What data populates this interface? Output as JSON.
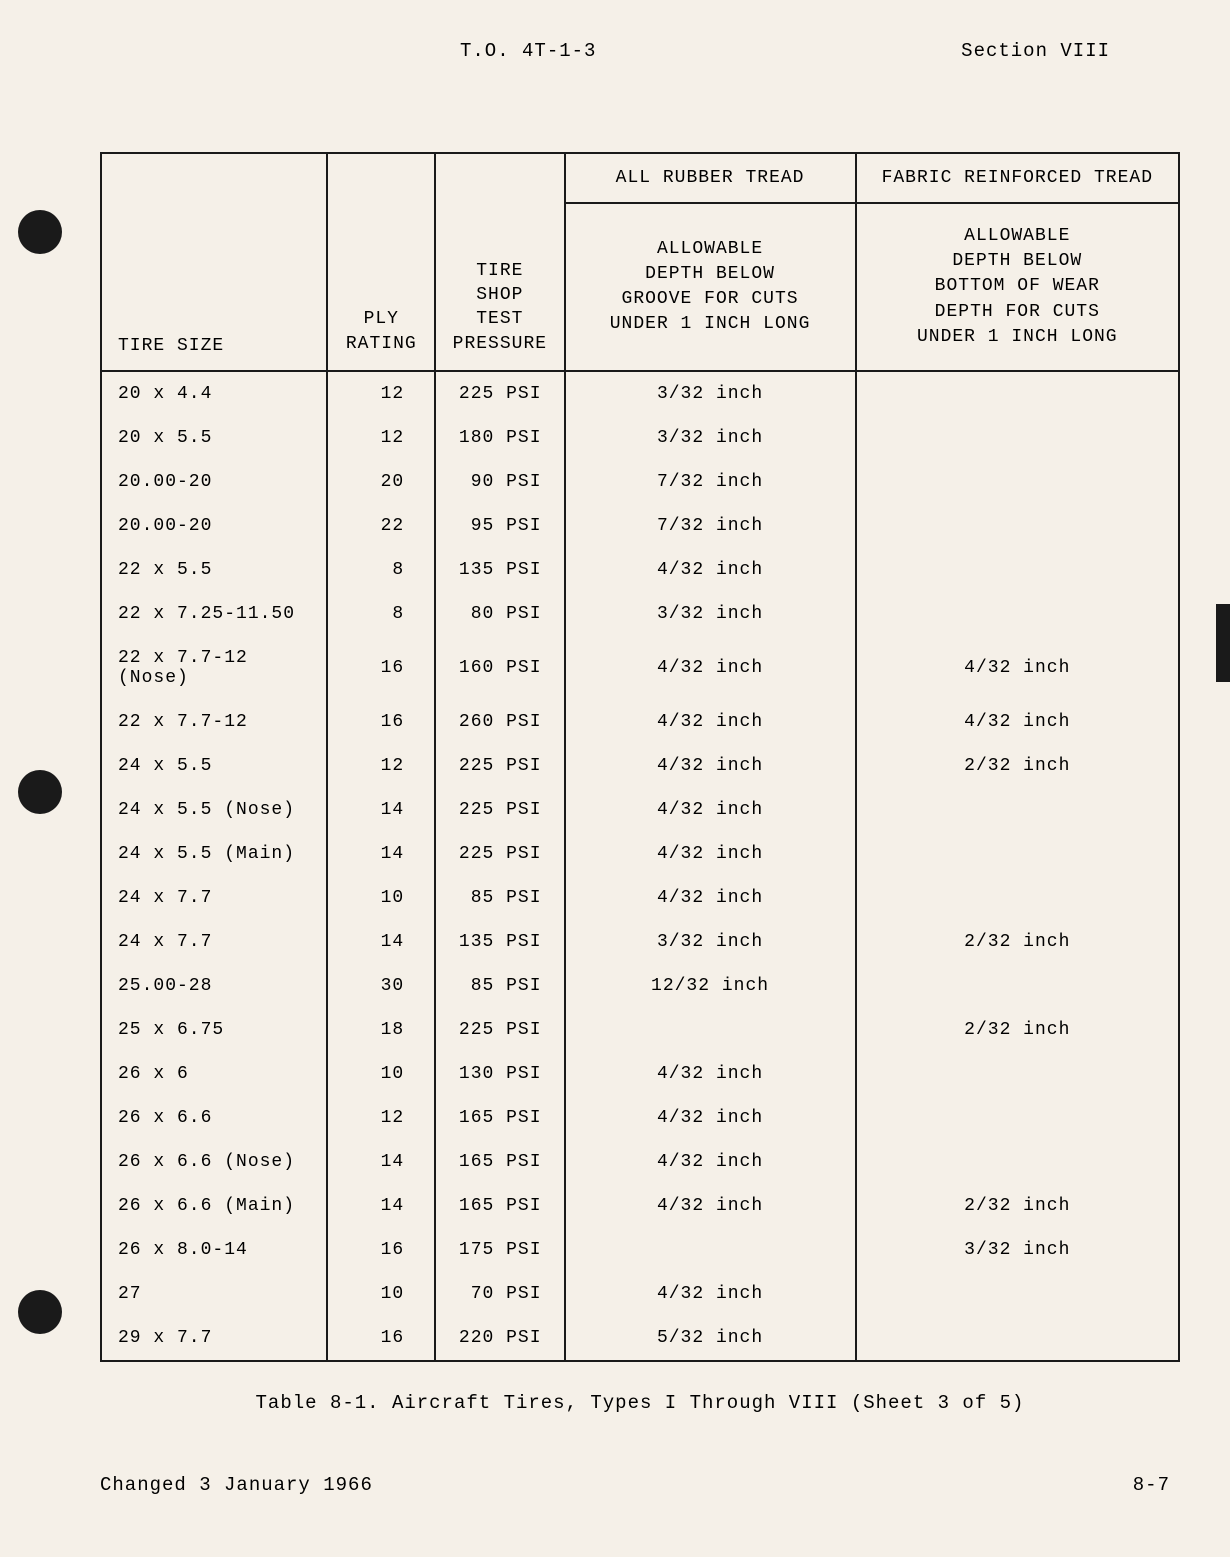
{
  "header": {
    "doc_id": "T.O. 4T-1-3",
    "section": "Section VIII"
  },
  "table": {
    "top_headers": {
      "c4": "ALL RUBBER TREAD",
      "c5": "FABRIC REINFORCED TREAD"
    },
    "headers": {
      "c1": "TIRE SIZE",
      "c2": "PLY\nRATING",
      "c3": "TIRE\nSHOP\nTEST\nPRESSURE",
      "c4": "ALLOWABLE\nDEPTH BELOW\nGROOVE FOR CUTS\nUNDER 1 INCH LONG",
      "c5": "ALLOWABLE\nDEPTH BELOW\nBOTTOM OF WEAR\nDEPTH FOR CUTS\nUNDER 1 INCH LONG"
    },
    "rows": [
      {
        "size": "20 x 4.4",
        "ply": "12",
        "psi": "225 PSI",
        "rubber": "3/32 inch",
        "fabric": ""
      },
      {
        "size": "20 x 5.5",
        "ply": "12",
        "psi": "180 PSI",
        "rubber": "3/32 inch",
        "fabric": ""
      },
      {
        "size": "20.00-20",
        "ply": "20",
        "psi": "90 PSI",
        "rubber": "7/32 inch",
        "fabric": ""
      },
      {
        "size": "20.00-20",
        "ply": "22",
        "psi": "95 PSI",
        "rubber": "7/32 inch",
        "fabric": ""
      },
      {
        "size": "22 x 5.5",
        "ply": "8",
        "psi": "135 PSI",
        "rubber": "4/32 inch",
        "fabric": ""
      },
      {
        "size": "22 x 7.25-11.50",
        "ply": "8",
        "psi": "80 PSI",
        "rubber": "3/32 inch",
        "fabric": ""
      },
      {
        "size": "22 x 7.7-12 (Nose)",
        "ply": "16",
        "psi": "160 PSI",
        "rubber": "4/32 inch",
        "fabric": "4/32 inch"
      },
      {
        "size": "22 x 7.7-12",
        "ply": "16",
        "psi": "260 PSI",
        "rubber": "4/32 inch",
        "fabric": "4/32 inch"
      },
      {
        "size": "24 x 5.5",
        "ply": "12",
        "psi": "225 PSI",
        "rubber": "4/32 inch",
        "fabric": "2/32 inch"
      },
      {
        "size": "24 x 5.5 (Nose)",
        "ply": "14",
        "psi": "225 PSI",
        "rubber": "4/32 inch",
        "fabric": ""
      },
      {
        "size": "24 x 5.5 (Main)",
        "ply": "14",
        "psi": "225 PSI",
        "rubber": "4/32 inch",
        "fabric": ""
      },
      {
        "size": "24 x 7.7",
        "ply": "10",
        "psi": "85 PSI",
        "rubber": "4/32 inch",
        "fabric": ""
      },
      {
        "size": "24 x 7.7",
        "ply": "14",
        "psi": "135 PSI",
        "rubber": "3/32 inch",
        "fabric": "2/32 inch"
      },
      {
        "size": "25.00-28",
        "ply": "30",
        "psi": "85 PSI",
        "rubber": "12/32 inch",
        "fabric": ""
      },
      {
        "size": "25 x 6.75",
        "ply": "18",
        "psi": "225 PSI",
        "rubber": "",
        "fabric": "2/32 inch"
      },
      {
        "size": "26 x 6",
        "ply": "10",
        "psi": "130 PSI",
        "rubber": "4/32 inch",
        "fabric": ""
      },
      {
        "size": "26 x 6.6",
        "ply": "12",
        "psi": "165 PSI",
        "rubber": "4/32 inch",
        "fabric": ""
      },
      {
        "size": "26 x 6.6 (Nose)",
        "ply": "14",
        "psi": "165 PSI",
        "rubber": "4/32 inch",
        "fabric": ""
      },
      {
        "size": "26 x 6.6 (Main)",
        "ply": "14",
        "psi": "165 PSI",
        "rubber": "4/32 inch",
        "fabric": "2/32 inch"
      },
      {
        "size": "26 x 8.0-14",
        "ply": "16",
        "psi": "175 PSI",
        "rubber": "",
        "fabric": "3/32 inch"
      },
      {
        "size": "27",
        "ply": "10",
        "psi": "70 PSI",
        "rubber": "4/32 inch",
        "fabric": ""
      },
      {
        "size": "29 x 7.7",
        "ply": "16",
        "psi": "220 PSI",
        "rubber": "5/32 inch",
        "fabric": ""
      }
    ]
  },
  "caption": "Table 8-1.  Aircraft Tires, Types I Through VIII (Sheet 3 of 5)",
  "footer": {
    "changed": "Changed 3 January 1966",
    "page": "8-7"
  }
}
